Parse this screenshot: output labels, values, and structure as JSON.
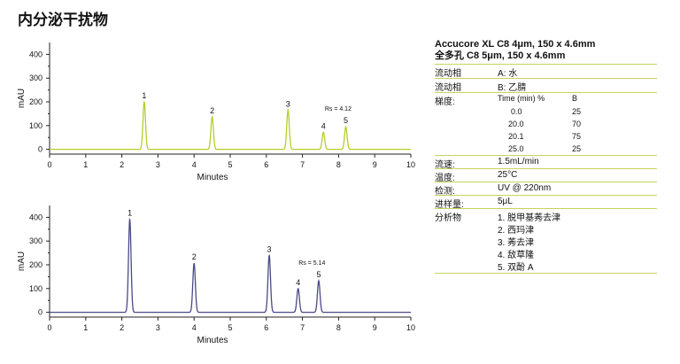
{
  "title": "内分泌干扰物",
  "column_info": {
    "line1": "Accucore XL C8 4μm, 150 x 4.6mm",
    "line2": "全多孔 C8 5μm, 150 x 4.6mm"
  },
  "conditions": {
    "mobile_a_label": "流动相",
    "mobile_a_value": "A: 水",
    "mobile_b_label": "流动相",
    "mobile_b_value": "B: 乙腈",
    "gradient_label": "梯度:",
    "gradient_header_time": "Time (min) %",
    "gradient_header_b": "B",
    "gradient_rows": [
      {
        "time": "0.0",
        "b": "25"
      },
      {
        "time": "20.0",
        "b": "70"
      },
      {
        "time": "20.1",
        "b": "75"
      },
      {
        "time": "25.0",
        "b": "25"
      }
    ],
    "flow_label": "流速:",
    "flow_value": "1.5mL/min",
    "temp_label": "温度:",
    "temp_value": "25°C",
    "detect_label": "检测:",
    "detect_value": "UV @ 220nm",
    "inject_label": "进样量:",
    "inject_value": "5μL",
    "analytes_label": "分析物",
    "analytes": [
      "1. 脱甲基莠去津",
      "2. 西玛津",
      "3. 莠去津",
      "4. 敌草隆",
      "5. 双酚 A"
    ]
  },
  "chart_data": [
    {
      "type": "line",
      "title": "",
      "xlabel": "Minutes",
      "ylabel": "mAU",
      "xlim": [
        0,
        10
      ],
      "ylim": [
        -20,
        450
      ],
      "xticks": [
        0,
        1,
        2,
        3,
        4,
        5,
        6,
        7,
        8,
        9,
        10
      ],
      "yticks": [
        0,
        100,
        200,
        300,
        400
      ],
      "line_color": "#b8cc2a",
      "resolution_label": "Rs = 4.12",
      "peaks": [
        {
          "label": "1",
          "rt": 2.62,
          "height": 200
        },
        {
          "label": "2",
          "rt": 4.5,
          "height": 137
        },
        {
          "label": "3",
          "rt": 6.6,
          "height": 165
        },
        {
          "label": "4",
          "rt": 7.58,
          "height": 72
        },
        {
          "label": "5",
          "rt": 8.2,
          "height": 95
        }
      ]
    },
    {
      "type": "line",
      "title": "",
      "xlabel": "Minutes",
      "ylabel": "mAU",
      "xlim": [
        0,
        10
      ],
      "ylim": [
        -20,
        450
      ],
      "xticks": [
        0,
        1,
        2,
        3,
        4,
        5,
        6,
        7,
        8,
        9,
        10
      ],
      "yticks": [
        0,
        100,
        200,
        300,
        400
      ],
      "line_color": "#4a4a88",
      "resolution_label": "Rs = 5.14",
      "peaks": [
        {
          "label": "1",
          "rt": 2.22,
          "height": 392
        },
        {
          "label": "2",
          "rt": 4.0,
          "height": 207
        },
        {
          "label": "3",
          "rt": 6.08,
          "height": 240
        },
        {
          "label": "4",
          "rt": 6.88,
          "height": 100
        },
        {
          "label": "5",
          "rt": 7.45,
          "height": 133
        }
      ]
    }
  ]
}
